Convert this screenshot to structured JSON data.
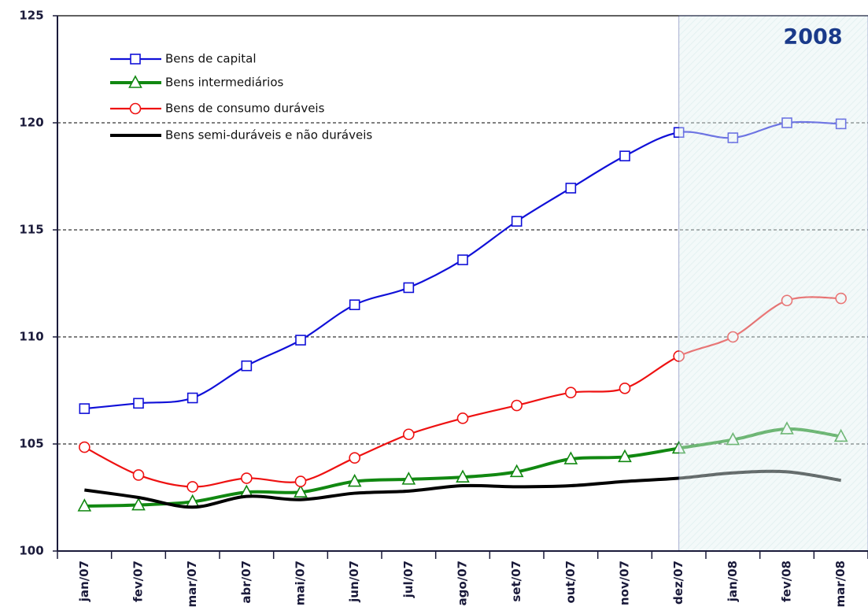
{
  "chart_data": {
    "type": "line",
    "annotation": "2008",
    "categories": [
      "jan/07",
      "fev/07",
      "mar/07",
      "abr/07",
      "mai/07",
      "jun/07",
      "jul/07",
      "ago/07",
      "set/07",
      "out/07",
      "nov/07",
      "dez/07",
      "jan/08",
      "fev/08",
      "mar/08"
    ],
    "series": [
      {
        "name": "Bens de capital",
        "color": "#1010d8",
        "marker": "square",
        "values": [
          106.65,
          106.9,
          107.15,
          108.65,
          109.85,
          111.5,
          112.3,
          113.6,
          115.4,
          116.95,
          118.45,
          119.55,
          119.3,
          120.0,
          119.95
        ]
      },
      {
        "name": "Bens intermediários",
        "color": "#118811",
        "marker": "triangle",
        "values": [
          102.1,
          102.15,
          102.3,
          102.75,
          102.75,
          103.25,
          103.35,
          103.45,
          103.7,
          104.3,
          104.4,
          104.8,
          105.2,
          105.7,
          105.35
        ]
      },
      {
        "name": "Bens de consumo duráveis",
        "color": "#ee1111",
        "marker": "circle",
        "values": [
          104.85,
          103.55,
          103.0,
          103.4,
          103.25,
          104.35,
          105.45,
          106.2,
          106.8,
          107.4,
          107.6,
          109.1,
          110.0,
          111.7,
          111.8
        ]
      },
      {
        "name": "Bens semi-duráveis e não duráveis",
        "color": "#000000",
        "marker": "none",
        "values": [
          102.85,
          102.5,
          102.05,
          102.55,
          102.4,
          102.7,
          102.8,
          103.05,
          103.0,
          103.05,
          103.25,
          103.4,
          103.65,
          103.7,
          103.3
        ]
      }
    ],
    "ylim": [
      100,
      125
    ],
    "yticks": [
      100,
      105,
      110,
      115,
      120,
      125
    ],
    "grid": true
  }
}
